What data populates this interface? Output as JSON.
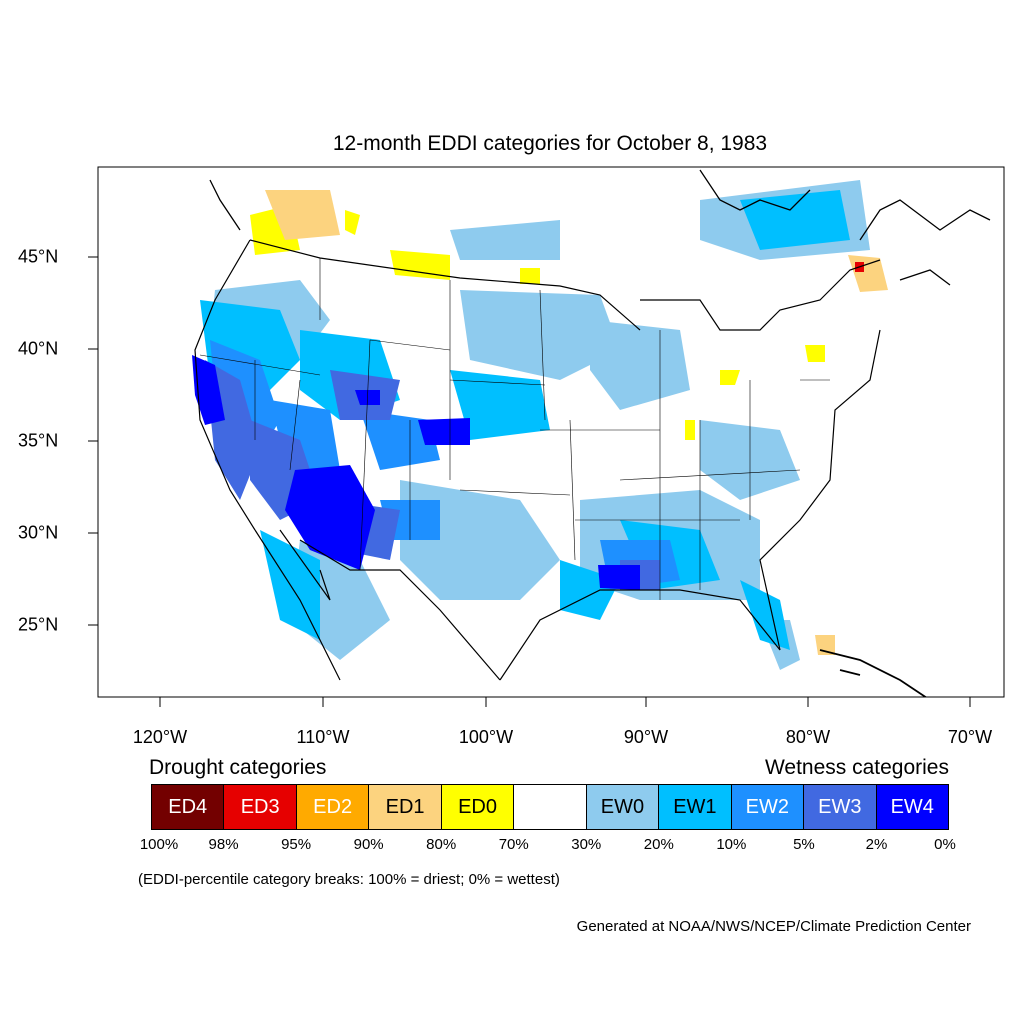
{
  "title": "12-month EDDI categories for October 8, 1983",
  "lon_labels": [
    "120°W",
    "110°W",
    "100°W",
    "90°W",
    "80°W",
    "70°W"
  ],
  "lat_labels": [
    "45°N",
    "40°N",
    "35°N",
    "30°N",
    "25°N"
  ],
  "legend": {
    "drought_heading": "Drought categories",
    "wetness_heading": "Wetness categories",
    "categories": [
      {
        "label": "ED4",
        "color": "#730000",
        "text_color": "#ffffff"
      },
      {
        "label": "ED3",
        "color": "#e60000",
        "text_color": "#ffffff"
      },
      {
        "label": "ED2",
        "color": "#ffaa00",
        "text_color": "#ffffff"
      },
      {
        "label": "ED1",
        "color": "#fcd37f",
        "text_color": "#000000"
      },
      {
        "label": "ED0",
        "color": "#ffff00",
        "text_color": "#000000"
      },
      {
        "label": "",
        "color": "#ffffff",
        "text_color": "#000000"
      },
      {
        "label": "EW0",
        "color": "#8ecbee",
        "text_color": "#000000"
      },
      {
        "label": "EW1",
        "color": "#00bfff",
        "text_color": "#000000"
      },
      {
        "label": "EW2",
        "color": "#1e90ff",
        "text_color": "#ffffff"
      },
      {
        "label": "EW3",
        "color": "#4169e1",
        "text_color": "#ffffff"
      },
      {
        "label": "EW4",
        "color": "#0000ff",
        "text_color": "#ffffff"
      }
    ],
    "percentiles": [
      "100%",
      "98%",
      "95%",
      "90%",
      "80%",
      "70%",
      "30%",
      "20%",
      "10%",
      "5%",
      "2%",
      "0%"
    ]
  },
  "note": "(EDDI-percentile category breaks: 100% = driest; 0% = wettest)",
  "credit": "Generated at NOAA/NWS/NCEP/Climate Prediction Center"
}
